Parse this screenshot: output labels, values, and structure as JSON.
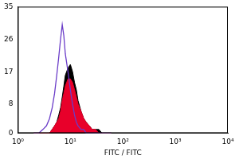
{
  "chart_data": {
    "type": "line",
    "x_label": "FITC / FITC",
    "log": "x",
    "grid": false,
    "xlim": [
      1,
      10000
    ],
    "xticks": [
      {
        "value": 1,
        "label": "10⁰"
      },
      {
        "value": 10,
        "label": "10¹"
      },
      {
        "value": 100,
        "label": "10²"
      },
      {
        "value": 1000,
        "label": "10³"
      },
      {
        "value": 10000,
        "label": "10⁴"
      }
    ],
    "ylim": [
      0,
      35
    ],
    "yticks": [
      0,
      8,
      17,
      26,
      35
    ],
    "x": [
      2,
      2.5,
      3,
      3.5,
      4,
      4.5,
      5,
      5.5,
      6,
      6.5,
      7,
      7.5,
      8,
      9,
      10,
      11,
      12,
      13,
      14,
      16,
      18,
      20,
      23,
      26,
      30,
      35,
      40,
      50,
      60
    ],
    "series": [
      {
        "type": "line",
        "color": "#6a3cc8",
        "values": [
          0,
          0,
          1,
          2,
          4,
          7,
          11,
          16,
          21,
          26,
          30,
          27,
          22,
          17,
          12,
          8,
          5,
          3,
          2,
          1,
          1,
          0,
          0,
          0,
          0,
          0,
          0,
          0,
          0
        ]
      },
      {
        "type": "area",
        "color": "#e8002a",
        "values": [
          0,
          0,
          0,
          0,
          0,
          1,
          2,
          3,
          4,
          6,
          9,
          11,
          13,
          15,
          15,
          14,
          12,
          10,
          8,
          6,
          4,
          3,
          2,
          1,
          1,
          0,
          0,
          0,
          0
        ]
      },
      {
        "type": "area",
        "color": "#000000",
        "values": [
          0,
          0,
          0,
          0,
          0,
          1,
          2,
          3,
          5,
          7,
          10,
          13,
          16,
          18,
          19,
          17,
          14,
          12,
          9,
          6,
          4,
          3,
          2,
          1,
          1,
          1,
          0,
          0,
          0
        ]
      }
    ]
  }
}
